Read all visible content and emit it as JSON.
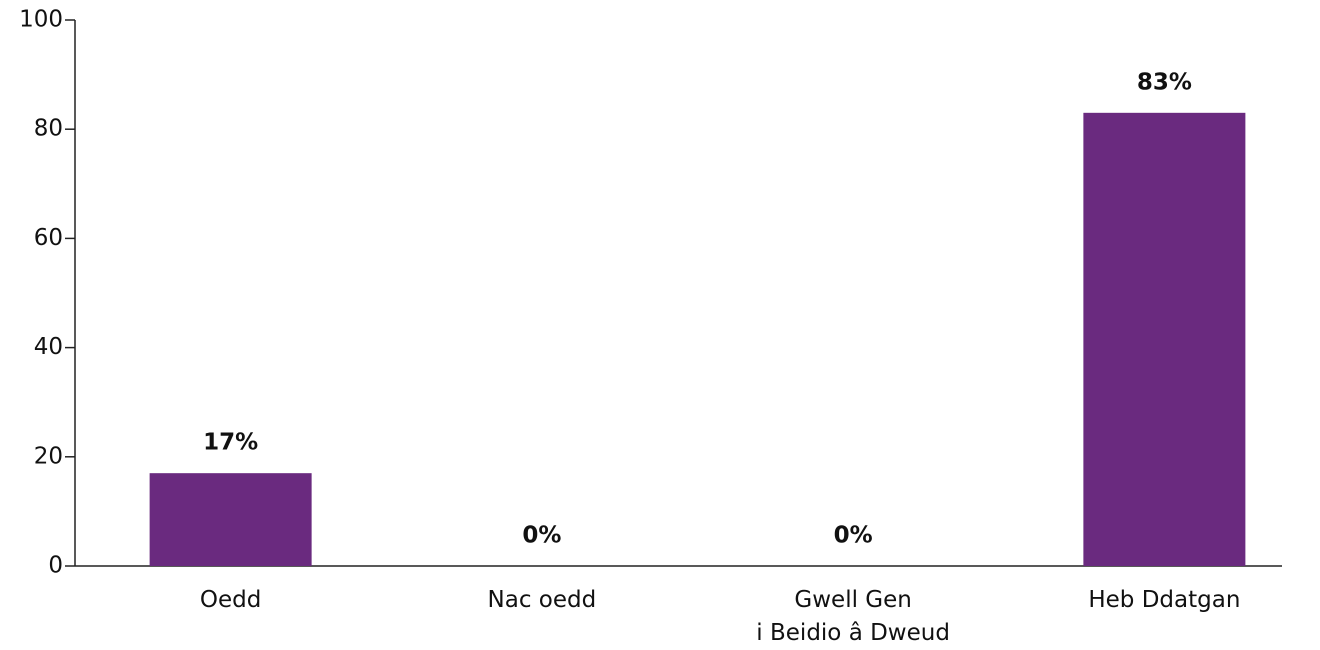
{
  "chart_data": {
    "type": "bar",
    "categories": [
      "Oedd",
      "Nac oedd",
      "Gwell Gen\ni Beidio â Dweud",
      "Heb Ddatgan"
    ],
    "values": [
      17,
      0,
      0,
      83
    ],
    "value_labels": [
      "17%",
      "0%",
      "0%",
      "83%"
    ],
    "color": "#6a2a7f",
    "ylim": [
      0,
      100
    ],
    "yticks": [
      0,
      20,
      40,
      60,
      80,
      100
    ],
    "grid": false
  }
}
